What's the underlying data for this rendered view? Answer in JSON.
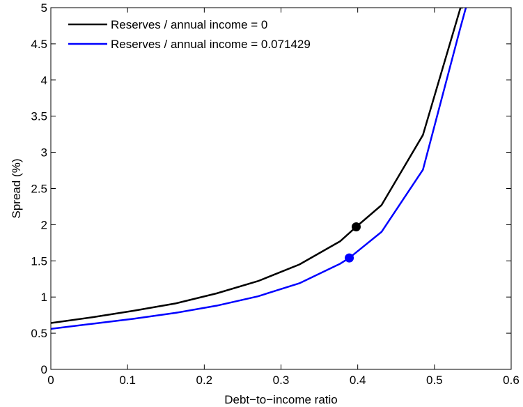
{
  "chart_data": {
    "type": "line",
    "title": "",
    "xlabel": "Debt−to−income ratio",
    "ylabel": "Spread (%)",
    "xlim": [
      0,
      0.6
    ],
    "ylim": [
      0,
      5
    ],
    "xticks": [
      "0",
      "0.1",
      "0.2",
      "0.3",
      "0.4",
      "0.5",
      "0.6"
    ],
    "yticks": [
      "0",
      "0.5",
      "1",
      "1.5",
      "2",
      "2.5",
      "3",
      "3.5",
      "4",
      "4.5",
      "5"
    ],
    "grid": false,
    "legend_position": "top-left",
    "series": [
      {
        "name": "Reserves / annual income = 0",
        "color": "#000000",
        "x": [
          0,
          0.054,
          0.108,
          0.162,
          0.216,
          0.27,
          0.324,
          0.377,
          0.398,
          0.431,
          0.485,
          0.534,
          0.537
        ],
        "y": [
          0.64,
          0.72,
          0.81,
          0.91,
          1.05,
          1.22,
          1.45,
          1.77,
          1.97,
          2.27,
          3.24,
          5.0,
          5.0
        ],
        "marker": {
          "x": 0.398,
          "y": 1.97
        }
      },
      {
        "name": "Reserves / annual income = 0.071429",
        "color": "#0000ff",
        "x": [
          0,
          0.054,
          0.108,
          0.162,
          0.216,
          0.27,
          0.324,
          0.377,
          0.389,
          0.431,
          0.485,
          0.534,
          0.541
        ],
        "y": [
          0.56,
          0.63,
          0.7,
          0.78,
          0.88,
          1.01,
          1.19,
          1.46,
          1.54,
          1.9,
          2.76,
          4.73,
          5.0
        ],
        "marker": {
          "x": 0.389,
          "y": 1.54
        }
      }
    ]
  }
}
